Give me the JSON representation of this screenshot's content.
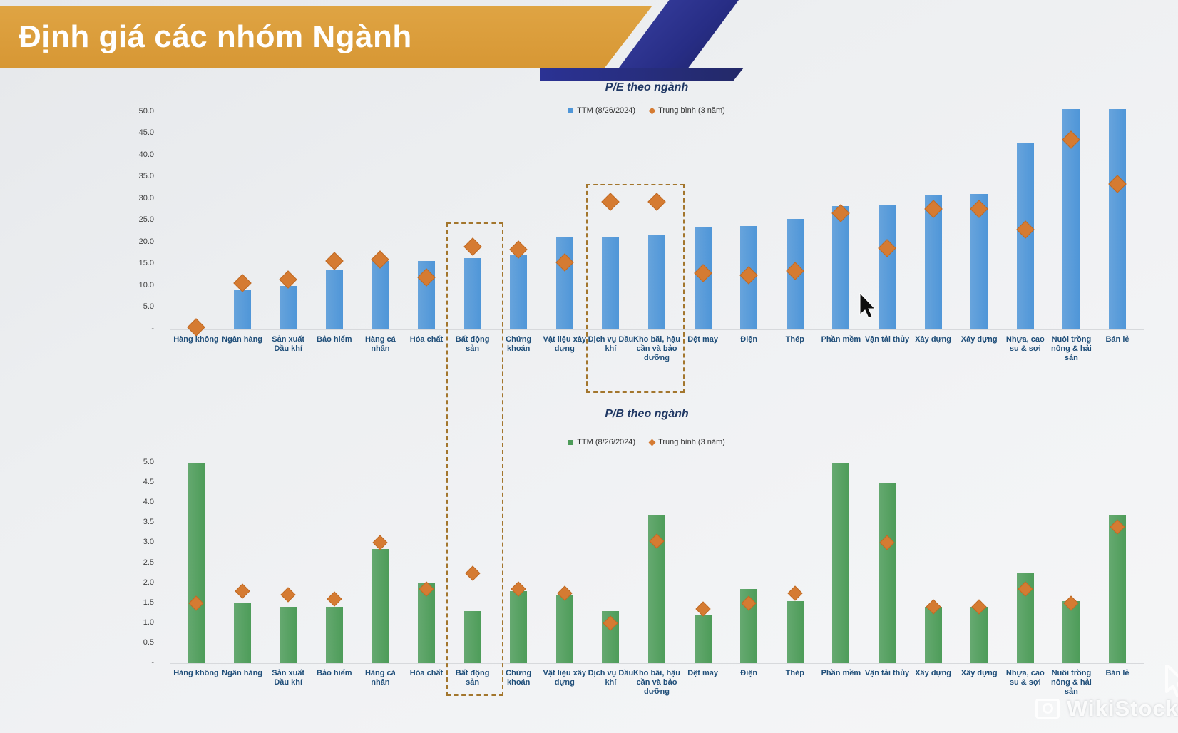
{
  "banner": {
    "title": "Định giá các nhóm Ngành"
  },
  "watermark": {
    "text": "WikiStock"
  },
  "colors": {
    "banner_orange": "#d79734",
    "ribbon_navy": "#272d85",
    "pe_bar_blue": "#4f96d8",
    "pb_bar_green": "#4d9c59",
    "avg_diamond_orange": "#d57b32",
    "highlight_dash": "#a3762d",
    "category_label": "#1f4e79",
    "chart_title": "#203864"
  },
  "categories": [
    "Hàng không",
    "Ngân hàng",
    "Sản xuất Dầu khí",
    "Bảo hiểm",
    "Hàng cá nhân",
    "Hóa chất",
    "Bất động sản",
    "Chứng khoán",
    "Vật liệu xây dựng",
    "Dịch vụ Dầu khí",
    "Kho bãi, hậu cần và bảo dưỡng",
    "Dệt may",
    "Điện",
    "Thép",
    "Phần mềm",
    "Vận tải thủy",
    "Xây dựng",
    "Xây dựng",
    "Nhựa, cao su & sợi",
    "Nuôi trồng nông & hải sản",
    "Bán lẻ"
  ],
  "highlights": [
    {
      "label": "Bất động sản",
      "category_index": 6,
      "span": "both-charts"
    },
    {
      "label": "Dịch vụ Dầu khí / Kho bãi, hậu cần và bảo dưỡng",
      "category_indices": [
        9,
        10
      ],
      "span": "pe-chart"
    }
  ],
  "chart_data": [
    {
      "id": "pe",
      "type": "bar",
      "title": "P/E theo ngành",
      "legend_position": "top-center",
      "grid": false,
      "ylim": [
        0,
        52
      ],
      "ytick_labels": [
        "50.0",
        "45.0",
        "40.0",
        "35.0",
        "30.0",
        "25.0",
        "20.0",
        "15.0",
        "10.0",
        "5.0",
        "-"
      ],
      "ytick_values": [
        50,
        45,
        40,
        35,
        30,
        25,
        20,
        15,
        10,
        5,
        0
      ],
      "legend": [
        {
          "label": "TTM (8/26/2024)",
          "marker": "square",
          "color": "#4f96d8"
        },
        {
          "label": "Trung bình (3 năm)",
          "marker": "diamond",
          "color": "#d57b32"
        }
      ],
      "series": [
        {
          "name": "TTM (8/26/2024)",
          "kind": "bar",
          "color": "#4f96d8",
          "values": [
            0,
            9.0,
            10.0,
            13.8,
            15.7,
            15.7,
            16.4,
            17.0,
            21.1,
            21.3,
            21.6,
            23.4,
            23.7,
            25.4,
            28.3,
            28.4,
            30.9,
            31.1,
            42.9,
            50.5,
            50.5
          ]
        },
        {
          "name": "Trung bình (3 năm)",
          "kind": "diamond",
          "color": "#d57b32",
          "values": [
            0.5,
            10.6,
            11.4,
            15.7,
            16.0,
            11.9,
            19.0,
            18.3,
            15.4,
            29.3,
            29.3,
            12.9,
            12.4,
            13.5,
            26.7,
            18.6,
            27.7,
            27.7,
            22.9,
            43.6,
            33.4
          ]
        }
      ]
    },
    {
      "id": "pb",
      "type": "bar",
      "title": "P/B theo ngành",
      "legend_position": "top-center",
      "grid": false,
      "ylim": [
        0,
        5.2
      ],
      "ytick_labels": [
        "5.0",
        "4.5",
        "4.0",
        "3.5",
        "3.0",
        "2.5",
        "2.0",
        "1.5",
        "1.0",
        "0.5",
        "-"
      ],
      "ytick_values": [
        5,
        4.5,
        4,
        3.5,
        3,
        2.5,
        2,
        1.5,
        1,
        0.5,
        0
      ],
      "legend": [
        {
          "label": "TTM (8/26/2024)",
          "marker": "square",
          "color": "#4d9c59"
        },
        {
          "label": "Trung bình (3 năm)",
          "marker": "diamond",
          "color": "#d57b32"
        }
      ],
      "series": [
        {
          "name": "TTM (8/26/2024)",
          "kind": "bar",
          "color": "#4d9c59",
          "values": [
            5.0,
            1.5,
            1.4,
            1.4,
            2.85,
            2.0,
            1.3,
            1.8,
            1.7,
            1.3,
            3.7,
            1.2,
            1.85,
            1.55,
            5.0,
            4.5,
            1.4,
            1.4,
            2.25,
            1.55,
            3.7
          ]
        },
        {
          "name": "Trung bình (3 năm)",
          "kind": "diamond",
          "color": "#d57b32",
          "values": [
            1.5,
            1.8,
            1.7,
            1.6,
            3.0,
            1.85,
            2.25,
            1.85,
            1.75,
            1.0,
            3.05,
            1.35,
            1.5,
            1.75,
            null,
            3.0,
            1.4,
            1.4,
            1.85,
            1.5,
            3.4
          ]
        }
      ]
    }
  ]
}
